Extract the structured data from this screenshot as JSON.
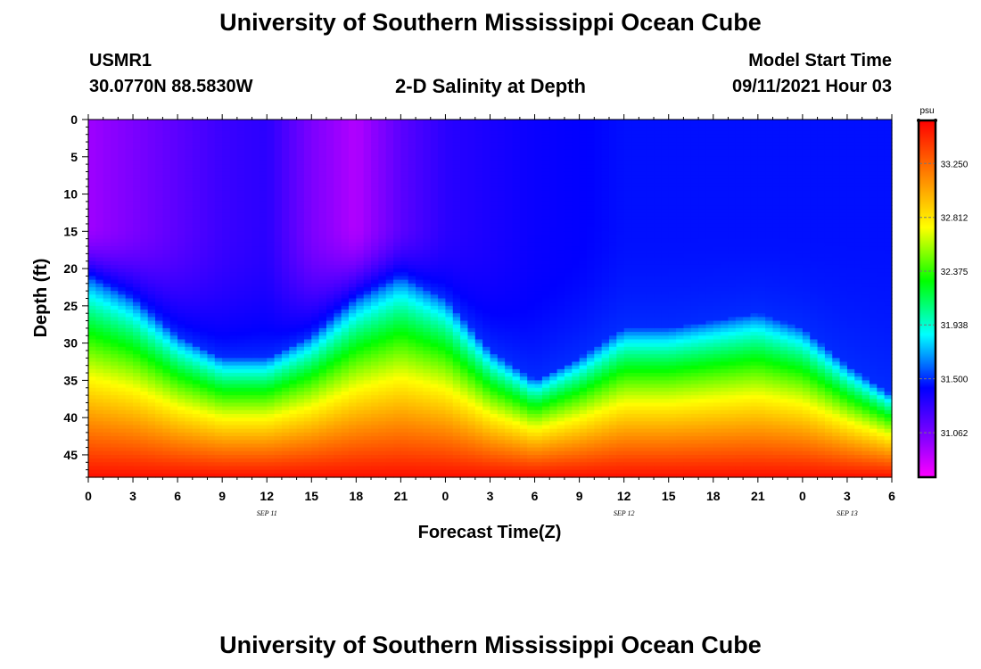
{
  "page": {
    "title_top": "University of Southern Mississippi Ocean Cube",
    "title_bottom": "University of Southern Mississippi Ocean Cube",
    "station": "USMR1",
    "coords": "30.0770N  88.5830W",
    "plot_title": "2-D Salinity at Depth",
    "model_label": "Model Start Time",
    "model_time": "09/11/2021 Hour 03"
  },
  "chart_data": {
    "type": "heatmap",
    "title": "2-D Salinity at Depth",
    "xlabel": "Forecast Time(Z)",
    "ylabel": "Depth (ft)",
    "x_range": [
      0,
      54
    ],
    "x_unit": "hours from 09/11 00Z",
    "x_tick_labels": [
      "0",
      "3",
      "6",
      "9",
      "12",
      "15",
      "18",
      "21",
      "0",
      "3",
      "6",
      "9",
      "12",
      "15",
      "18",
      "21",
      "0",
      "3",
      "6"
    ],
    "date_labels": [
      {
        "hour": 12,
        "label": "SEP 11"
      },
      {
        "hour": 36,
        "label": "SEP 12"
      },
      {
        "hour": 51,
        "label": "SEP 13"
      }
    ],
    "y_range": [
      0,
      48
    ],
    "y_ticks": [
      0,
      5,
      10,
      15,
      20,
      25,
      30,
      35,
      40,
      45
    ],
    "y_inverted": true,
    "colorbar": {
      "unit": "psu",
      "min": 30.7,
      "max": 33.6,
      "ticks": [
        "33.250",
        "32.812",
        "32.375",
        "31.938",
        "31.500",
        "31.062"
      ],
      "tick_values": [
        33.25,
        32.812,
        32.375,
        31.938,
        31.5,
        31.062
      ]
    },
    "halocline_depth_ft": {
      "hours": [
        0,
        3,
        6,
        9,
        12,
        15,
        18,
        21,
        24,
        27,
        30,
        33,
        36,
        39,
        42,
        45,
        48,
        51,
        54
      ],
      "values": [
        24,
        27,
        32,
        35,
        35,
        32,
        27,
        24,
        27,
        34,
        38,
        35,
        31,
        31,
        30,
        29,
        31,
        36,
        40
      ]
    },
    "surface_salinity_psu": {
      "hours": [
        0,
        3,
        6,
        9,
        12,
        15,
        18,
        21,
        24,
        27,
        30,
        33,
        36,
        39,
        42,
        45,
        48,
        51,
        54
      ],
      "values": [
        30.95,
        31.05,
        31.15,
        31.25,
        31.3,
        31.05,
        30.9,
        31.15,
        31.3,
        31.35,
        31.4,
        31.42,
        31.45,
        31.45,
        31.45,
        31.45,
        31.45,
        31.45,
        31.45
      ]
    },
    "bottom_salinity_psu": 33.55
  }
}
